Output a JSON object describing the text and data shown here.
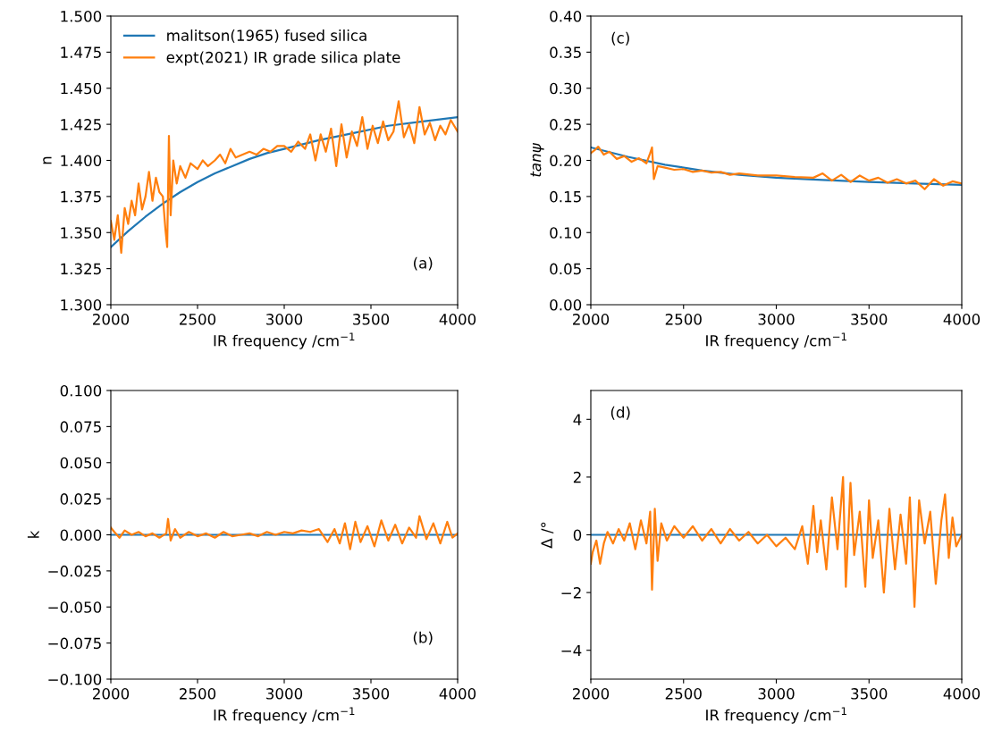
{
  "chart_data": [
    {
      "type": "line",
      "xlabel": "IR frequency /cm$^{−1}$",
      "ylabel": "n",
      "annotations": [
        "(a)"
      ],
      "legend": "top left",
      "grid": false,
      "xlim": [
        2000,
        4000
      ],
      "xticks": [
        2000,
        2500,
        3000,
        3500,
        4000
      ],
      "ylim": [
        1.3,
        1.5
      ],
      "yticks": [
        {
          "value": 1.3,
          "label": "1.300"
        },
        {
          "value": 1.325,
          "label": "1.325"
        },
        {
          "value": 1.35,
          "label": "1.350"
        },
        {
          "value": 1.375,
          "label": "1.375"
        },
        {
          "value": 1.4,
          "label": "1.400"
        },
        {
          "value": 1.425,
          "label": "1.425"
        },
        {
          "value": 1.45,
          "label": "1.450"
        },
        {
          "value": 1.475,
          "label": "1.475"
        },
        {
          "value": 1.5,
          "label": "1.500"
        }
      ],
      "series": [
        {
          "name": "malitson(1965) fused silica",
          "color": "#1f77b4",
          "x": [
            2000,
            2100,
            2200,
            2300,
            2400,
            2500,
            2600,
            2700,
            2800,
            2900,
            3000,
            3200,
            3400,
            3600,
            3800,
            4000
          ],
          "values": [
            1.34,
            1.351,
            1.361,
            1.37,
            1.378,
            1.385,
            1.391,
            1.396,
            1.401,
            1.405,
            1.408,
            1.414,
            1.419,
            1.424,
            1.427,
            1.43
          ]
        },
        {
          "name": "expt(2021) IR grade silica plate",
          "color": "#ff7f0e",
          "x": [
            2000,
            2020,
            2040,
            2060,
            2080,
            2100,
            2120,
            2140,
            2160,
            2180,
            2200,
            2220,
            2240,
            2260,
            2280,
            2300,
            2315,
            2325,
            2335,
            2345,
            2360,
            2380,
            2400,
            2430,
            2460,
            2500,
            2530,
            2560,
            2600,
            2630,
            2660,
            2690,
            2720,
            2760,
            2800,
            2840,
            2880,
            2920,
            2960,
            3000,
            3040,
            3080,
            3120,
            3150,
            3180,
            3210,
            3240,
            3270,
            3300,
            3330,
            3360,
            3390,
            3420,
            3450,
            3480,
            3510,
            3540,
            3570,
            3600,
            3630,
            3660,
            3690,
            3720,
            3750,
            3780,
            3810,
            3840,
            3870,
            3900,
            3930,
            3960,
            4000
          ],
          "values": [
            1.358,
            1.345,
            1.362,
            1.336,
            1.367,
            1.356,
            1.372,
            1.362,
            1.384,
            1.366,
            1.375,
            1.392,
            1.372,
            1.388,
            1.378,
            1.375,
            1.352,
            1.34,
            1.417,
            1.362,
            1.4,
            1.384,
            1.396,
            1.388,
            1.398,
            1.394,
            1.4,
            1.396,
            1.4,
            1.404,
            1.398,
            1.408,
            1.402,
            1.404,
            1.406,
            1.404,
            1.408,
            1.406,
            1.41,
            1.41,
            1.406,
            1.413,
            1.408,
            1.418,
            1.4,
            1.418,
            1.406,
            1.422,
            1.396,
            1.425,
            1.402,
            1.42,
            1.41,
            1.43,
            1.408,
            1.424,
            1.412,
            1.427,
            1.414,
            1.42,
            1.441,
            1.416,
            1.425,
            1.412,
            1.437,
            1.418,
            1.426,
            1.414,
            1.424,
            1.418,
            1.428,
            1.42
          ]
        }
      ]
    },
    {
      "type": "line",
      "xlabel": "IR frequency /cm$^{−1}$",
      "ylabel": "tanψ",
      "annotations": [
        "(c)"
      ],
      "grid": false,
      "xlim": [
        2000,
        4000
      ],
      "xticks": [
        2000,
        2500,
        3000,
        3500,
        4000
      ],
      "ylim": [
        0.0,
        0.4
      ],
      "yticks": [
        {
          "value": 0.0,
          "label": "0.00"
        },
        {
          "value": 0.05,
          "label": "0.05"
        },
        {
          "value": 0.1,
          "label": "0.10"
        },
        {
          "value": 0.15,
          "label": "0.15"
        },
        {
          "value": 0.2,
          "label": "0.20"
        },
        {
          "value": 0.25,
          "label": "0.25"
        },
        {
          "value": 0.3,
          "label": "0.30"
        },
        {
          "value": 0.35,
          "label": "0.35"
        },
        {
          "value": 0.4,
          "label": "0.40"
        }
      ],
      "series": [
        {
          "color": "#1f77b4",
          "x": [
            2000,
            2200,
            2400,
            2600,
            2800,
            3000,
            3250,
            3500,
            3750,
            4000
          ],
          "values": [
            0.218,
            0.205,
            0.194,
            0.186,
            0.18,
            0.176,
            0.173,
            0.17,
            0.168,
            0.166
          ]
        },
        {
          "color": "#ff7f0e",
          "x": [
            2000,
            2020,
            2040,
            2070,
            2100,
            2140,
            2180,
            2220,
            2260,
            2300,
            2320,
            2330,
            2340,
            2360,
            2400,
            2450,
            2500,
            2550,
            2600,
            2650,
            2700,
            2750,
            2800,
            2900,
            3000,
            3100,
            3200,
            3250,
            3300,
            3350,
            3400,
            3450,
            3500,
            3550,
            3600,
            3650,
            3700,
            3750,
            3800,
            3850,
            3900,
            3950,
            4000
          ],
          "values": [
            0.21,
            0.214,
            0.219,
            0.208,
            0.212,
            0.202,
            0.206,
            0.198,
            0.203,
            0.196,
            0.21,
            0.218,
            0.174,
            0.192,
            0.19,
            0.187,
            0.188,
            0.184,
            0.186,
            0.183,
            0.184,
            0.18,
            0.182,
            0.179,
            0.179,
            0.177,
            0.176,
            0.182,
            0.172,
            0.18,
            0.17,
            0.179,
            0.172,
            0.176,
            0.169,
            0.174,
            0.168,
            0.172,
            0.16,
            0.174,
            0.165,
            0.171,
            0.168
          ]
        }
      ]
    },
    {
      "type": "line",
      "xlabel": "IR frequency /cm$^{−1}$",
      "ylabel": "k",
      "annotations": [
        "(b)"
      ],
      "grid": false,
      "xlim": [
        2000,
        4000
      ],
      "xticks": [
        2000,
        2500,
        3000,
        3500,
        4000
      ],
      "ylim": [
        -0.1,
        0.1
      ],
      "yticks": [
        {
          "value": -0.1,
          "label": "−0.100"
        },
        {
          "value": -0.075,
          "label": "−0.075"
        },
        {
          "value": -0.05,
          "label": "−0.050"
        },
        {
          "value": -0.025,
          "label": "−0.025"
        },
        {
          "value": 0.0,
          "label": "0.000"
        },
        {
          "value": 0.025,
          "label": "0.025"
        },
        {
          "value": 0.05,
          "label": "0.050"
        },
        {
          "value": 0.075,
          "label": "0.075"
        },
        {
          "value": 0.1,
          "label": "0.100"
        }
      ],
      "series": [
        {
          "color": "#1f77b4",
          "x": [
            2000,
            4000
          ],
          "values": [
            0.0,
            0.0
          ]
        },
        {
          "color": "#ff7f0e",
          "x": [
            2000,
            2020,
            2050,
            2080,
            2120,
            2160,
            2200,
            2240,
            2280,
            2320,
            2330,
            2345,
            2370,
            2400,
            2450,
            2500,
            2550,
            2600,
            2650,
            2700,
            2750,
            2800,
            2850,
            2900,
            2950,
            3000,
            3050,
            3100,
            3150,
            3200,
            3250,
            3290,
            3320,
            3350,
            3380,
            3410,
            3440,
            3480,
            3520,
            3560,
            3600,
            3640,
            3680,
            3720,
            3760,
            3780,
            3820,
            3860,
            3900,
            3940,
            3970,
            4000
          ],
          "values": [
            0.005,
            0.002,
            -0.002,
            0.003,
            0.0,
            0.002,
            -0.001,
            0.001,
            -0.002,
            0.001,
            0.011,
            -0.004,
            0.004,
            -0.002,
            0.002,
            -0.001,
            0.001,
            -0.002,
            0.002,
            -0.001,
            0.0,
            0.001,
            -0.001,
            0.002,
            0.0,
            0.002,
            0.001,
            0.003,
            0.002,
            0.004,
            -0.005,
            0.004,
            -0.006,
            0.008,
            -0.01,
            0.009,
            -0.005,
            0.006,
            -0.008,
            0.01,
            -0.004,
            0.007,
            -0.006,
            0.005,
            -0.002,
            0.013,
            -0.003,
            0.008,
            -0.006,
            0.009,
            -0.002,
            0.001
          ]
        }
      ]
    },
    {
      "type": "line",
      "xlabel": "IR frequency /cm$^{−1}$",
      "ylabel": "Δ /°",
      "annotations": [
        "(d)"
      ],
      "grid": false,
      "xlim": [
        2000,
        4000
      ],
      "xticks": [
        2000,
        2500,
        3000,
        3500,
        4000
      ],
      "ylim": [
        -5,
        5
      ],
      "yticks": [
        {
          "value": -4,
          "label": "−4"
        },
        {
          "value": -2,
          "label": "−2"
        },
        {
          "value": 0,
          "label": "0"
        },
        {
          "value": 2,
          "label": "2"
        },
        {
          "value": 4,
          "label": "4"
        }
      ],
      "series": [
        {
          "color": "#1f77b4",
          "x": [
            2000,
            4000
          ],
          "values": [
            0.0,
            0.0
          ]
        },
        {
          "color": "#ff7f0e",
          "x": [
            2000,
            2010,
            2030,
            2050,
            2070,
            2090,
            2120,
            2150,
            2180,
            2210,
            2240,
            2270,
            2300,
            2320,
            2330,
            2345,
            2360,
            2380,
            2410,
            2450,
            2500,
            2550,
            2600,
            2650,
            2700,
            2750,
            2800,
            2850,
            2900,
            2950,
            3000,
            3050,
            3100,
            3140,
            3170,
            3200,
            3220,
            3240,
            3270,
            3300,
            3330,
            3360,
            3375,
            3400,
            3420,
            3450,
            3480,
            3500,
            3520,
            3550,
            3580,
            3610,
            3640,
            3670,
            3700,
            3720,
            3745,
            3770,
            3800,
            3830,
            3860,
            3890,
            3910,
            3930,
            3950,
            3970,
            4000
          ],
          "values": [
            -1.0,
            -0.6,
            -0.2,
            -1.0,
            -0.3,
            0.1,
            -0.3,
            0.2,
            -0.2,
            0.4,
            -0.5,
            0.5,
            -0.3,
            0.8,
            -1.9,
            0.9,
            -0.9,
            0.4,
            -0.2,
            0.3,
            -0.1,
            0.3,
            -0.2,
            0.2,
            -0.3,
            0.2,
            -0.2,
            0.1,
            -0.3,
            0.0,
            -0.4,
            -0.1,
            -0.5,
            0.3,
            -1.0,
            1.0,
            -0.6,
            0.5,
            -1.2,
            1.3,
            -0.5,
            2.0,
            -1.8,
            1.8,
            -0.7,
            0.8,
            -1.8,
            1.2,
            -0.8,
            0.5,
            -2.0,
            0.9,
            -1.2,
            0.7,
            -1.0,
            1.3,
            -2.5,
            1.2,
            -0.3,
            0.8,
            -1.7,
            0.5,
            1.4,
            -0.8,
            0.6,
            -0.4,
            0.0
          ]
        }
      ]
    }
  ]
}
